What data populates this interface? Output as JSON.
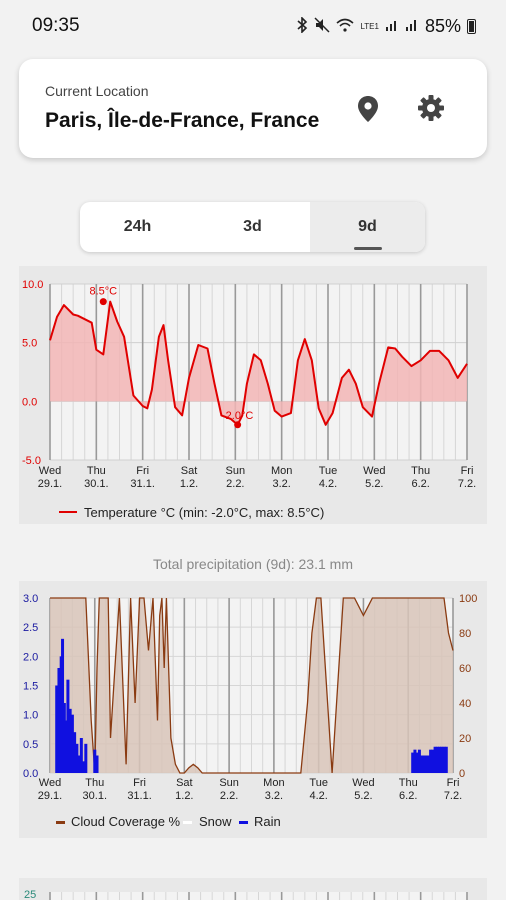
{
  "status": {
    "time": "09:35",
    "battery": "85%",
    "network": "LTE1"
  },
  "location": {
    "label": "Current Location",
    "name": "Paris, Île-de-France, France"
  },
  "tabs": [
    {
      "label": "24h",
      "active": false
    },
    {
      "label": "3d",
      "active": false
    },
    {
      "label": "9d",
      "active": true
    }
  ],
  "precip_total": "Total precipitation (9d): 23.1 mm",
  "colors": {
    "temp": "#e00000",
    "temp_fill": "#f2b5b5",
    "cloud": "#8a3b12",
    "cloud_fill": "#d8c4b8",
    "rain": "#1010e0",
    "axis_left": "#1a1aa0",
    "axis_right": "#8a3b12"
  },
  "chart_data": [
    {
      "type": "area",
      "y_ticks": [
        "10.0",
        "5.0",
        "0.0",
        "-5.0"
      ],
      "ylim": [
        -5,
        10
      ],
      "x_labels": [
        [
          "Wed",
          "29.1."
        ],
        [
          "Thu",
          "30.1."
        ],
        [
          "Fri",
          "31.1."
        ],
        [
          "Sat",
          "1.2."
        ],
        [
          "Sun",
          "2.2."
        ],
        [
          "Mon",
          "3.2."
        ],
        [
          "Tue",
          "4.2."
        ],
        [
          "Wed",
          "5.2."
        ],
        [
          "Thu",
          "6.2."
        ],
        [
          "Fri",
          "7.2."
        ]
      ],
      "x": [
        0,
        0.15,
        0.3,
        0.5,
        0.6,
        0.9,
        1.0,
        1.15,
        1.3,
        1.45,
        1.6,
        1.8,
        2.0,
        2.1,
        2.2,
        2.35,
        2.45,
        2.55,
        2.7,
        2.85,
        3.0,
        3.2,
        3.4,
        3.55,
        3.7,
        3.9,
        4.05,
        4.15,
        4.25,
        4.4,
        4.55,
        4.7,
        4.85,
        5.0,
        5.2,
        5.35,
        5.5,
        5.65,
        5.8,
        5.95,
        6.1,
        6.3,
        6.45,
        6.6,
        6.75,
        6.95,
        7.1,
        7.3,
        7.45,
        7.6,
        7.8,
        8.0,
        8.2,
        8.4,
        8.6,
        8.8,
        9.0
      ],
      "series": [
        {
          "name": "Temperature °C (min: -2.0°C, max: 8.5°C)",
          "values": [
            5.2,
            7.2,
            8.2,
            7.4,
            7.3,
            6.7,
            4.4,
            4.0,
            8.5,
            6.8,
            5.5,
            0.5,
            -0.4,
            -0.6,
            1.0,
            5.5,
            6.5,
            3.5,
            -0.5,
            -1.2,
            2.0,
            4.8,
            4.5,
            1.5,
            -1.2,
            -1.5,
            -2.0,
            -1.2,
            1.5,
            4.0,
            3.5,
            1.5,
            -0.8,
            -1.3,
            -1.0,
            3.5,
            5.3,
            3.5,
            -0.6,
            -2.0,
            -1.0,
            2.0,
            2.7,
            1.5,
            -0.5,
            -1.3,
            1.5,
            4.6,
            4.5,
            3.8,
            3.0,
            3.5,
            4.3,
            4.3,
            3.5,
            2.0,
            3.2
          ]
        }
      ],
      "annotations": [
        {
          "x": 1.15,
          "y": 8.5,
          "text": "8.5°C"
        },
        {
          "x": 4.05,
          "y": -2.0,
          "text": "-2.0°C"
        }
      ]
    },
    {
      "type": "bar",
      "y_ticks_left": [
        "3.0",
        "2.5",
        "2.0",
        "1.5",
        "1.0",
        "0.5",
        "0.0"
      ],
      "ylim_left": [
        0,
        3
      ],
      "y_ticks_right": [
        "100",
        "80",
        "60",
        "40",
        "20",
        "0"
      ],
      "ylim_right": [
        0,
        100
      ],
      "x_labels": [
        [
          "Wed",
          "29.1."
        ],
        [
          "Thu",
          "30.1."
        ],
        [
          "Fri",
          "31.1."
        ],
        [
          "Sat",
          "1.2."
        ],
        [
          "Sun",
          "2.2."
        ],
        [
          "Mon",
          "3.2."
        ],
        [
          "Tue",
          "4.2."
        ],
        [
          "Wed",
          "5.2."
        ],
        [
          "Thu",
          "6.2."
        ],
        [
          "Fri",
          "7.2."
        ]
      ],
      "cloud_x": [
        0,
        0.6,
        0.8,
        0.92,
        1.0,
        1.05,
        1.1,
        1.2,
        1.3,
        1.35,
        1.45,
        1.55,
        1.7,
        1.8,
        1.9,
        2.0,
        2.1,
        2.2,
        2.3,
        2.4,
        2.45,
        2.5,
        2.55,
        2.6,
        2.7,
        2.8,
        2.9,
        3.0,
        3.1,
        3.2,
        3.3,
        3.4,
        3.5,
        4.0,
        5.0,
        5.6,
        5.75,
        5.85,
        5.95,
        6.05,
        6.2,
        6.3,
        6.45,
        6.55,
        6.7,
        6.8,
        6.9,
        7.0,
        7.1,
        7.2,
        7.3,
        7.5,
        8.0,
        8.5,
        8.8,
        8.9,
        9.0
      ],
      "cloud_values": [
        100,
        100,
        100,
        30,
        0,
        60,
        100,
        100,
        100,
        20,
        60,
        100,
        5,
        100,
        40,
        100,
        100,
        70,
        100,
        30,
        90,
        100,
        60,
        100,
        20,
        5,
        0,
        0,
        3,
        5,
        3,
        0,
        0,
        0,
        0,
        0,
        40,
        80,
        100,
        100,
        40,
        0,
        60,
        100,
        100,
        100,
        95,
        90,
        95,
        100,
        100,
        100,
        100,
        100,
        100,
        80,
        70
      ],
      "rain_x": [
        0.15,
        0.2,
        0.25,
        0.28,
        0.32,
        0.35,
        0.4,
        0.45,
        0.5,
        0.55,
        0.6,
        0.65,
        0.7,
        0.75,
        0.8,
        1.0,
        1.05,
        8.1,
        8.15,
        8.2,
        8.25,
        8.3,
        8.35,
        8.4,
        8.45,
        8.5,
        8.55,
        8.6,
        8.65,
        8.7,
        8.75,
        8.8,
        8.85
      ],
      "rain_values": [
        1.5,
        1.8,
        2.0,
        2.3,
        1.2,
        0.9,
        1.6,
        1.1,
        1.0,
        0.7,
        0.5,
        0.3,
        0.6,
        0.2,
        0.5,
        0.4,
        0.3,
        0.35,
        0.4,
        0.35,
        0.4,
        0.3,
        0.3,
        0.3,
        0.3,
        0.4,
        0.4,
        0.45,
        0.45,
        0.45,
        0.45,
        0.45,
        0.45
      ],
      "legend": [
        "Cloud Coverage %",
        "Snow",
        "Rain"
      ]
    }
  ],
  "next_chart": {
    "y_top": "25"
  }
}
